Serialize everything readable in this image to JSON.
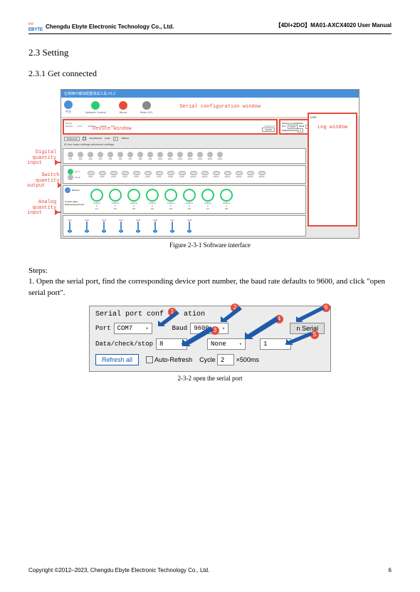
{
  "header": {
    "company": "Chengdu Ebyte Electronic Technology Co., Ltd.",
    "doc_title": "【4DI+2DO】MA01-AXCX4020 User Manual",
    "logo": "EBYTE"
  },
  "section": {
    "num": "2.3 Setting",
    "sub": "2.3.1 Get connected"
  },
  "fig1": {
    "caption": "Figure 2-3-1 Software interface",
    "titlebar": "亿佰特IO模块配置测试工具 V1.2",
    "toolbar": [
      {
        "label": "中文",
        "color": "#4a90d9"
      },
      {
        "label": "Network Control",
        "color": "#2ecc71"
      },
      {
        "label": "About",
        "color": "#e74c3c"
      },
      {
        "label": "Hide LOG",
        "color": "#888"
      }
    ],
    "serial_conf_label": "Serial configuration window",
    "device_label": "Device window",
    "log_label": "Log window",
    "side_labels": {
      "di": "Digital\nquantity\ninput",
      "do": "Switch\nquantity\noutput",
      "ai": "Analog\nquantity\ninput"
    },
    "device_cols": [
      "Number",
      "mod…",
      "address",
      "version",
      "Hua…"
    ],
    "device_side": "selection 0",
    "device_btn": "Search",
    "serial_fields": {
      "title": "Serial port configration",
      "port_l": "Port",
      "port_v": "COM7",
      "baud_l": "Baud",
      "baud_v": "9600",
      "open": "Open Serial",
      "dcs_l": "Data/check/stop",
      "dcs_v": "8"
    },
    "log_title": "LOG",
    "refresh": "Refresh all",
    "auto": "Auto-Refresh",
    "cycle_l": "Cycle",
    "cycle_v": "2",
    "cycle_u": "×500ms",
    "tabs": "ID dev  basic settings  advanced settings",
    "di": [
      "DI1",
      "DI2",
      "DI3",
      "DI4",
      "DI5",
      "DI6",
      "DI7",
      "DI8",
      "DI9",
      "DI10",
      "DI11",
      "DI12",
      "DI13",
      "DI14",
      "DI15",
      "DI16"
    ],
    "do_ctrl": [
      "All on",
      "All off"
    ],
    "do": [
      "DO1",
      "DO2",
      "DO3",
      "DO4",
      "DO5",
      "DO6",
      "DO7",
      "DO8",
      "DO9",
      "DO10",
      "DO11",
      "DO12",
      "DO13",
      "DO14",
      "DO15",
      "DO16"
    ],
    "ai_btn": "Refresh",
    "ai_row1": "Current value:",
    "ai_row2": "Engineering Amount:",
    "ai_vals": [
      "0.00mA",
      "0.00mA",
      "0.00mA",
      "0.00mA",
      "0.00mA",
      "0.00mA",
      "0.00mA",
      "0.00mA"
    ],
    "ai_amt": [
      "0",
      "0",
      "0",
      "0",
      "0",
      "0",
      "0",
      "0"
    ],
    "ai": [
      "AI1",
      "AI2",
      "AI3",
      "AI4",
      "AI5",
      "AI6",
      "AI7",
      "AI8"
    ],
    "ao": [
      "AO1",
      "AO2",
      "AO3",
      "AO4",
      "AO5",
      "AO6",
      "AO7",
      "AO8"
    ]
  },
  "steps": {
    "title": "Steps:",
    "s1": "1.  Open the serial port, find the corresponding device port number, the baud rate defaults to 9600, and click \"open serial port\"."
  },
  "fig2": {
    "caption": "2-3-2 open the serial port",
    "title": "Serial port conf",
    "title2": "ation",
    "port_l": "Port",
    "port_v": "COM7",
    "baud_l": "Baud",
    "baud_v": "9600",
    "open": "n Serial",
    "dcs_l": "Data/check/stop",
    "dcs_v": "8",
    "check_v": "None",
    "stop_v": "1",
    "refresh": "Refresh all",
    "auto": "Auto-Refresh",
    "cycle_l": "Cycle",
    "cycle_v": "2",
    "cycle_u": "×500ms",
    "badges": [
      "1",
      "2",
      "3",
      "4",
      "5",
      "6"
    ],
    "arrow_color": "#1e5aa8"
  },
  "footer": {
    "copyright": "Copyright ©2012–2023, Chengdu Ebyte Electronic Technology Co., Ltd.",
    "page": "6"
  }
}
